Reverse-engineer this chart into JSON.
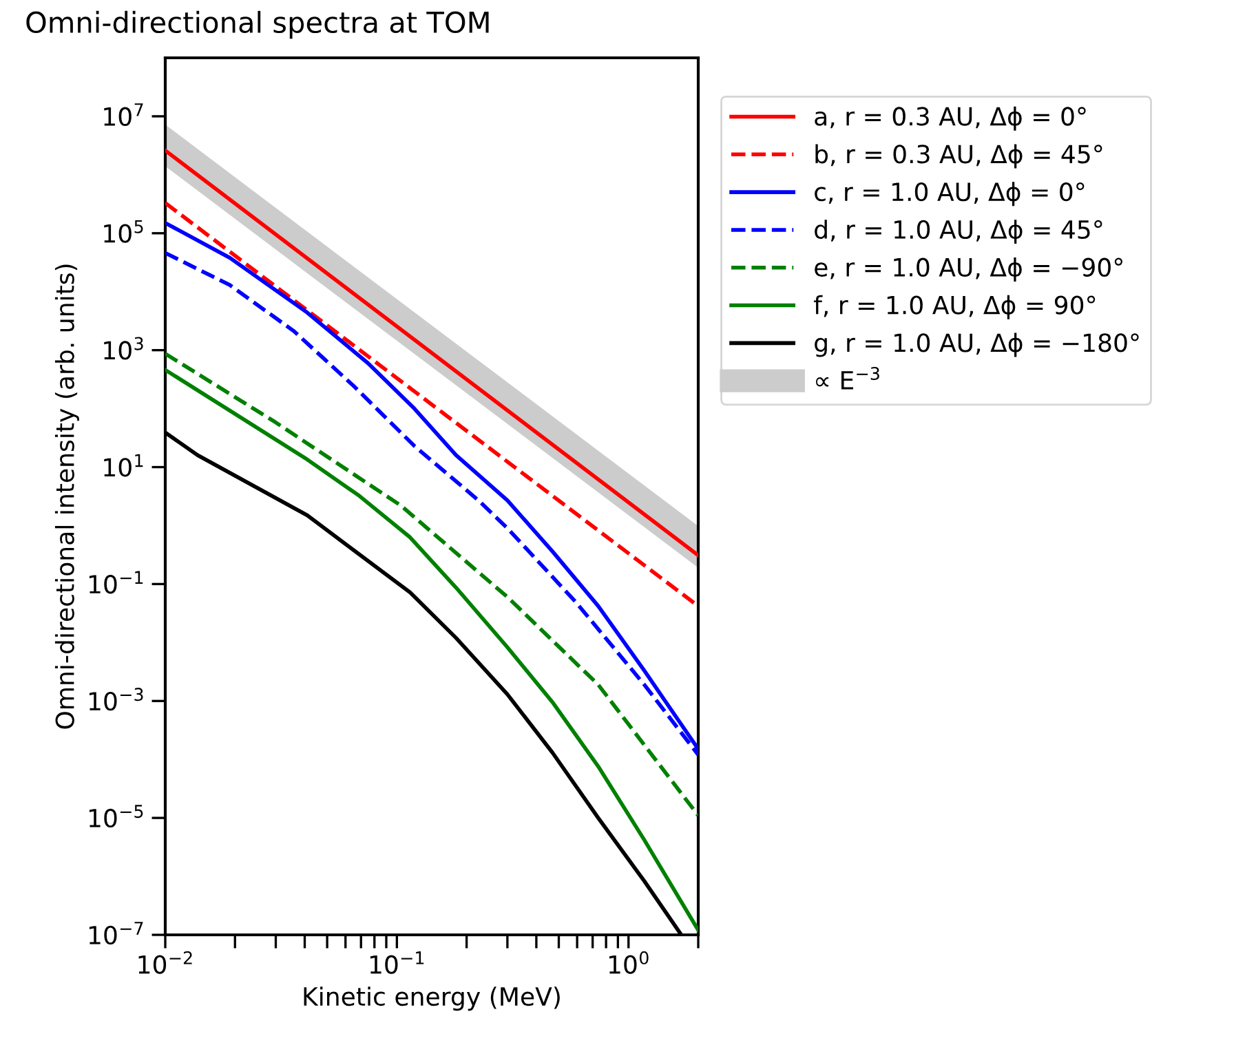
{
  "chart_data": {
    "type": "line",
    "title": "Omni-directional spectra at TOM",
    "xlabel": "Kinetic energy (MeV)",
    "ylabel": "Omni-directional intensity (arb. units)",
    "log": "xy",
    "xlim": [
      0.01,
      2
    ],
    "ylim": [
      1e-07,
      100000000.0
    ],
    "xticks": [
      {
        "value": 0.01,
        "label": "10$^{−2}$"
      },
      {
        "value": 0.02,
        "label": null
      },
      {
        "value": 0.03,
        "label": null
      },
      {
        "value": 0.04,
        "label": null
      },
      {
        "value": 0.05,
        "label": null
      },
      {
        "value": 0.06,
        "label": null
      },
      {
        "value": 0.07,
        "label": null
      },
      {
        "value": 0.08,
        "label": null
      },
      {
        "value": 0.09,
        "label": null
      },
      {
        "value": 0.1,
        "label": "10$^{−1}$"
      },
      {
        "value": 0.2,
        "label": null
      },
      {
        "value": 0.3,
        "label": null
      },
      {
        "value": 0.4,
        "label": null
      },
      {
        "value": 0.5,
        "label": null
      },
      {
        "value": 0.6,
        "label": null
      },
      {
        "value": 0.7,
        "label": null
      },
      {
        "value": 0.8,
        "label": null
      },
      {
        "value": 0.9,
        "label": null
      },
      {
        "value": 1,
        "label": "10$^{0}$"
      },
      {
        "value": 2,
        "label": null
      }
    ],
    "yticks": [
      {
        "value": 1e-07,
        "label": "10$^{−7}$"
      },
      {
        "value": 1e-05,
        "label": "10$^{−5}$"
      },
      {
        "value": 0.001,
        "label": "10$^{−3}$"
      },
      {
        "value": 0.1,
        "label": "10$^{−1}$"
      },
      {
        "value": 10,
        "label": "10$^{1}$"
      },
      {
        "value": 1000,
        "label": "10$^{3}$"
      },
      {
        "value": 100000,
        "label": "10$^{5}$"
      },
      {
        "value": 10000000,
        "label": "10$^{7}$"
      }
    ],
    "grid": false,
    "legend": "right",
    "series": [
      {
        "name": "a, r = 0.3 AU, Δϕ = 0°",
        "color": "#ff0000",
        "line_style": "solid",
        "x": [
          0.01,
          2
        ],
        "values": [
          2600000.0,
          0.31
        ]
      },
      {
        "name": "b, r = 0.3 AU, Δϕ = 45°",
        "color": "#ff0000",
        "line_style": "dashed",
        "x": [
          0.01,
          2
        ],
        "values": [
          330000.0,
          0.042
        ]
      },
      {
        "name": "c, r = 1.0 AU, Δϕ = 0°",
        "color": "#0000ff",
        "line_style": "solid",
        "x": [
          0.01,
          0.019,
          0.041,
          0.075,
          0.119,
          0.18,
          0.3,
          0.47,
          0.74,
          1.17,
          2.0
        ],
        "values": [
          150000.0,
          38000.0,
          4400,
          600,
          100,
          16,
          2.7,
          0.36,
          0.042,
          0.0033,
          0.00015
        ]
      },
      {
        "name": "d, r = 1.0 AU, Δϕ = 45°",
        "color": "#0000ff",
        "line_style": "dashed",
        "x": [
          0.01,
          0.019,
          0.036,
          0.065,
          0.119,
          0.225,
          0.3,
          0.59,
          1.17,
          2.0
        ],
        "values": [
          46000.0,
          13000.0,
          2100,
          245,
          23,
          2.7,
          0.9,
          0.05,
          0.0019,
          0.00012
        ]
      },
      {
        "name": "e, r = 1.0 AU, Δϕ = −90°",
        "color": "#008000",
        "line_style": "dashed",
        "x": [
          0.01,
          0.03,
          0.104,
          0.3,
          0.74,
          2.0
        ],
        "values": [
          870,
          58,
          2.2,
          0.06,
          0.0019,
          1.1e-05
        ]
      },
      {
        "name": "f, r = 1.0 AU, Δϕ = 90°",
        "color": "#008000",
        "line_style": "solid",
        "x": [
          0.01,
          0.041,
          0.069,
          0.114,
          0.18,
          0.3,
          0.47,
          0.74,
          1.17,
          2.0
        ],
        "values": [
          460,
          13.5,
          3.2,
          0.63,
          0.087,
          0.0083,
          0.00095,
          7.6e-05,
          4.2e-06,
          1.2e-07
        ]
      },
      {
        "name": "g, r = 1.0 AU, Δϕ = −180°",
        "color": "#000000",
        "line_style": "solid",
        "x": [
          0.01,
          0.0138,
          0.041,
          0.114,
          0.18,
          0.3,
          0.47,
          0.74,
          1.17,
          1.69
        ],
        "values": [
          39,
          16,
          1.5,
          0.072,
          0.012,
          0.0013,
          0.00013,
          1e-05,
          8.3e-07,
          1e-07
        ]
      },
      {
        "name": "∝ E$^{−3}$",
        "type": "line",
        "color": "#cccccc",
        "x": [
          0.01,
          2
        ],
        "values": [
          null,
          null
        ],
        "lower": [
          1400000.0,
          0.19
        ],
        "upper": [
          7200000.0,
          0.98
        ]
      }
    ]
  }
}
